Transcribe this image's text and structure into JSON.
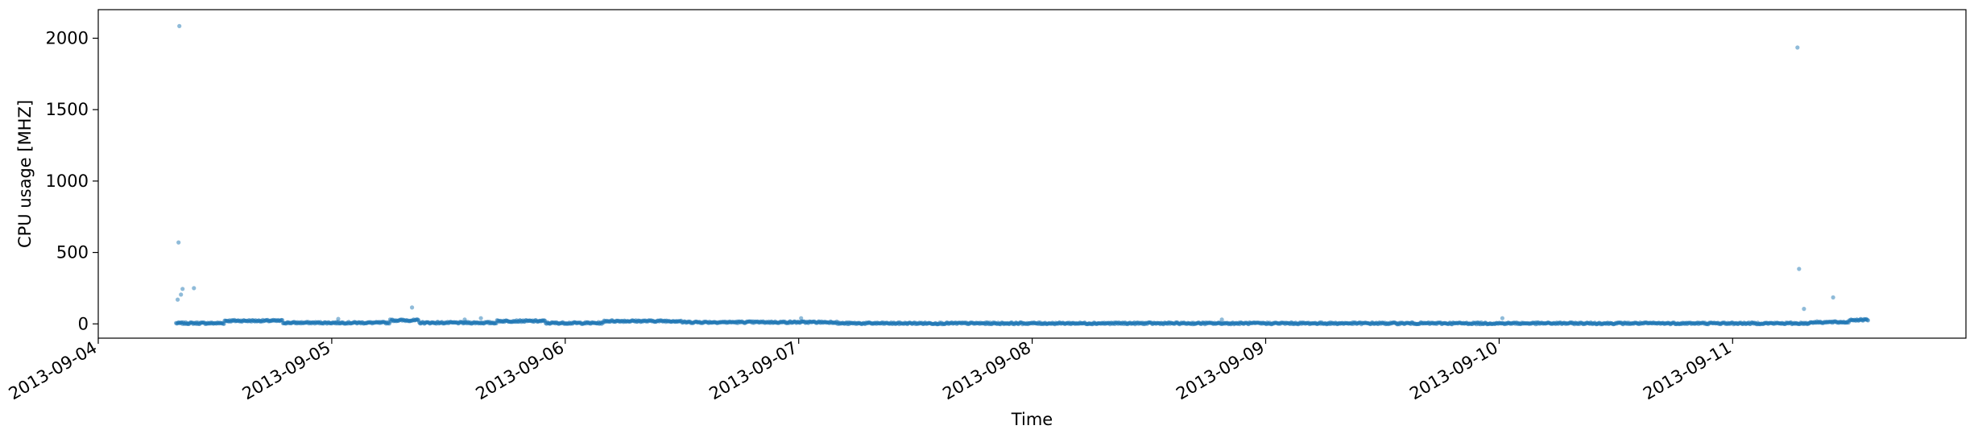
{
  "chart_data": {
    "type": "scatter",
    "xlabel": "Time",
    "ylabel": "CPU usage [MHZ]",
    "xlim": [
      "2013-09-04T00:00",
      "2013-09-11T23:59"
    ],
    "ylim": [
      -100,
      2200
    ],
    "x_tick_labels": [
      "2013-09-04",
      "2013-09-05",
      "2013-09-06",
      "2013-09-07",
      "2013-09-08",
      "2013-09-09",
      "2013-09-10",
      "2013-09-11"
    ],
    "y_tick_labels": [
      "0",
      "500",
      "1000",
      "1500",
      "2000"
    ],
    "y_ticks": [
      0,
      500,
      1000,
      1500,
      2000
    ],
    "grid": false,
    "marker_color": "#1f77b4",
    "data_range": [
      "2013-09-04T08:00",
      "2013-09-11T14:00"
    ],
    "baseline_levels": [
      {
        "start": "2013-09-04T08:00",
        "end": "2013-09-04T13:00",
        "value": 5
      },
      {
        "start": "2013-09-04T13:00",
        "end": "2013-09-04T19:00",
        "value": 22
      },
      {
        "start": "2013-09-04T19:00",
        "end": "2013-09-05T06:00",
        "value": 8
      },
      {
        "start": "2013-09-05T06:00",
        "end": "2013-09-05T09:00",
        "value": 25
      },
      {
        "start": "2013-09-05T09:00",
        "end": "2013-09-05T17:00",
        "value": 8
      },
      {
        "start": "2013-09-05T17:00",
        "end": "2013-09-05T22:00",
        "value": 20
      },
      {
        "start": "2013-09-05T22:00",
        "end": "2013-09-06T04:00",
        "value": 6
      },
      {
        "start": "2013-09-06T04:00",
        "end": "2013-09-06T12:00",
        "value": 20
      },
      {
        "start": "2013-09-06T12:00",
        "end": "2013-09-07T04:00",
        "value": 12
      },
      {
        "start": "2013-09-07T04:00",
        "end": "2013-09-11T08:00",
        "value": 4
      },
      {
        "start": "2013-09-11T08:00",
        "end": "2013-09-11T12:00",
        "value": 12
      },
      {
        "start": "2013-09-11T12:00",
        "end": "2013-09-11T14:00",
        "value": 28
      }
    ],
    "outliers": [
      {
        "x": "2013-09-04T08:20",
        "y": 2085
      },
      {
        "x": "2013-09-04T08:15",
        "y": 570
      },
      {
        "x": "2013-09-04T08:40",
        "y": 245
      },
      {
        "x": "2013-09-04T09:50",
        "y": 250
      },
      {
        "x": "2013-09-04T08:30",
        "y": 205
      },
      {
        "x": "2013-09-04T08:10",
        "y": 170
      },
      {
        "x": "2013-09-05T08:15",
        "y": 115
      },
      {
        "x": "2013-09-05T00:40",
        "y": 35
      },
      {
        "x": "2013-09-05T13:40",
        "y": 30
      },
      {
        "x": "2013-09-05T15:20",
        "y": 40
      },
      {
        "x": "2013-09-07T00:15",
        "y": 40
      },
      {
        "x": "2013-09-08T19:30",
        "y": 30
      },
      {
        "x": "2013-09-10T00:20",
        "y": 40
      },
      {
        "x": "2013-09-11T06:40",
        "y": 1935
      },
      {
        "x": "2013-09-11T06:50",
        "y": 385
      },
      {
        "x": "2013-09-11T10:20",
        "y": 185
      },
      {
        "x": "2013-09-11T07:20",
        "y": 105
      }
    ]
  }
}
